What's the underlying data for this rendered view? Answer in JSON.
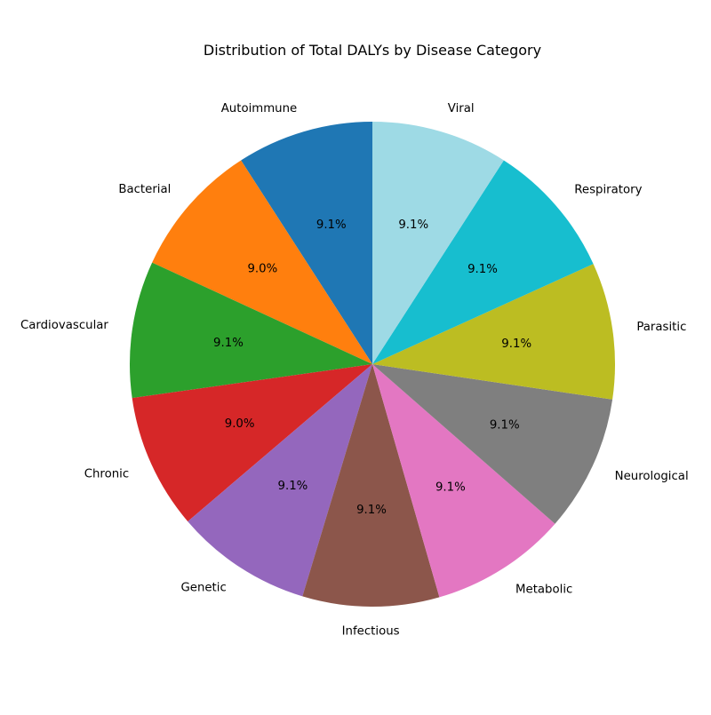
{
  "chart_data": {
    "type": "pie",
    "title": "Distribution of Total DALYs by Disease Category",
    "categories": [
      "Autoimmune",
      "Bacterial",
      "Cardiovascular",
      "Chronic",
      "Genetic",
      "Infectious",
      "Metabolic",
      "Neurological",
      "Parasitic",
      "Respiratory",
      "Viral"
    ],
    "values": [
      9.1,
      9.0,
      9.1,
      9.0,
      9.1,
      9.1,
      9.1,
      9.1,
      9.1,
      9.1,
      9.1
    ],
    "value_labels": [
      "9.1%",
      "9.0%",
      "9.1%",
      "9.0%",
      "9.1%",
      "9.1%",
      "9.1%",
      "9.1%",
      "9.1%",
      "9.1%",
      "9.1%"
    ],
    "colors": [
      "#1f77b4",
      "#ff7f0e",
      "#2ca02c",
      "#d62728",
      "#9467bd",
      "#8c564b",
      "#e377c2",
      "#7f7f7f",
      "#bcbd22",
      "#17becf",
      "#9edae5"
    ],
    "start_angle": 90,
    "direction": "counterclockwise",
    "legend": "none"
  }
}
